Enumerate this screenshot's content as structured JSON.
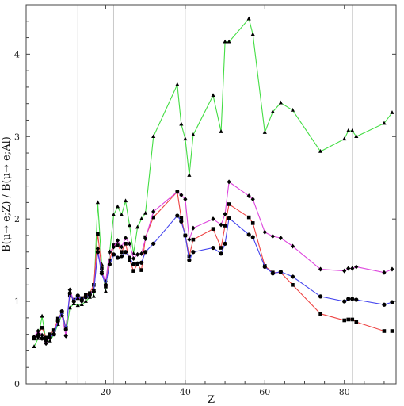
{
  "chart_data": {
    "type": "line",
    "title": "",
    "xlabel": "Z",
    "ylabel": "B(μ→ e;Z) / B(μ→ e;Al)",
    "xlim": [
      0,
      93
    ],
    "ylim": [
      0,
      4.6
    ],
    "x_ticks": [
      20,
      40,
      60,
      80
    ],
    "y_ticks": [
      0,
      1,
      2,
      3,
      4
    ],
    "vertical_reference_lines": [
      13,
      22,
      40,
      82
    ],
    "grid": false,
    "legend": "none",
    "series": [
      {
        "color": "#44dd44",
        "marker": "triangle",
        "x": [
          2,
          3,
          4,
          5,
          6,
          7,
          8,
          9,
          10,
          11,
          12,
          13,
          14,
          15,
          16,
          17,
          18,
          19,
          20,
          21,
          22,
          23,
          24,
          25,
          26,
          27,
          28,
          29,
          30,
          32,
          38,
          39,
          40,
          41,
          42,
          47,
          49,
          50,
          51,
          56,
          57,
          60,
          62,
          64,
          67,
          74,
          80,
          81,
          82,
          83,
          90,
          92
        ],
        "y": [
          0.45,
          0.55,
          0.82,
          0.52,
          0.52,
          0.6,
          0.72,
          0.84,
          0.6,
          0.92,
          0.97,
          0.95,
          0.96,
          1.0,
          1.05,
          1.06,
          2.2,
          1.45,
          1.12,
          1.6,
          2.05,
          2.15,
          2.05,
          2.22,
          1.92,
          1.58,
          1.9,
          2.0,
          2.07,
          3.0,
          3.63,
          3.15,
          2.97,
          2.53,
          3.02,
          3.5,
          3.06,
          4.15,
          4.15,
          4.43,
          4.24,
          3.05,
          3.3,
          3.41,
          3.32,
          2.82,
          2.97,
          3.07,
          3.07,
          3.0,
          3.16,
          3.29
        ]
      },
      {
        "color": "#ee4444",
        "marker": "square",
        "x": [
          2,
          3,
          4,
          5,
          6,
          7,
          8,
          9,
          10,
          11,
          12,
          13,
          14,
          15,
          16,
          17,
          18,
          19,
          20,
          21,
          22,
          23,
          24,
          25,
          26,
          27,
          28,
          29,
          30,
          32,
          38,
          39,
          40,
          41,
          42,
          47,
          49,
          50,
          51,
          56,
          57,
          60,
          62,
          64,
          67,
          74,
          80,
          81,
          82,
          83,
          90,
          92
        ],
        "y": [
          0.55,
          0.6,
          0.68,
          0.56,
          0.6,
          0.65,
          0.79,
          0.87,
          0.68,
          1.07,
          1.02,
          1.04,
          1.04,
          1.08,
          1.1,
          1.2,
          1.82,
          1.4,
          1.18,
          1.5,
          1.68,
          1.68,
          1.6,
          1.7,
          1.5,
          1.37,
          1.45,
          1.38,
          1.78,
          2.02,
          2.33,
          2.01,
          1.8,
          1.55,
          1.75,
          1.88,
          1.65,
          1.92,
          2.18,
          2.02,
          1.95,
          1.43,
          1.35,
          1.35,
          1.2,
          0.85,
          0.77,
          0.78,
          0.78,
          0.75,
          0.64,
          0.64
        ]
      },
      {
        "color": "#dd44dd",
        "marker": "diamond",
        "x": [
          2,
          3,
          4,
          5,
          6,
          7,
          8,
          9,
          10,
          11,
          12,
          13,
          14,
          15,
          16,
          17,
          18,
          19,
          20,
          21,
          22,
          23,
          24,
          25,
          26,
          27,
          28,
          29,
          30,
          32,
          38,
          39,
          40,
          41,
          42,
          47,
          49,
          50,
          51,
          56,
          57,
          60,
          62,
          64,
          67,
          74,
          80,
          81,
          82,
          83,
          90,
          92
        ],
        "y": [
          0.57,
          0.64,
          0.59,
          0.49,
          0.57,
          0.61,
          0.78,
          0.83,
          0.58,
          1.14,
          1.0,
          1.07,
          1.0,
          1.07,
          1.08,
          1.14,
          1.64,
          1.36,
          1.24,
          1.6,
          1.66,
          1.74,
          1.66,
          1.77,
          1.7,
          1.52,
          1.57,
          1.58,
          1.76,
          2.09,
          2.33,
          2.29,
          2.24,
          1.75,
          1.89,
          2.0,
          1.93,
          2.06,
          2.45,
          2.28,
          2.24,
          1.84,
          1.79,
          1.77,
          1.67,
          1.39,
          1.37,
          1.4,
          1.4,
          1.42,
          1.35,
          1.39
        ]
      },
      {
        "color": "#4444ee",
        "marker": "circle",
        "x": [
          2,
          3,
          4,
          5,
          6,
          7,
          8,
          9,
          10,
          11,
          12,
          13,
          14,
          15,
          16,
          17,
          18,
          19,
          20,
          21,
          22,
          23,
          24,
          25,
          26,
          27,
          28,
          29,
          30,
          32,
          38,
          39,
          40,
          41,
          42,
          47,
          49,
          50,
          51,
          56,
          57,
          60,
          62,
          64,
          67,
          74,
          80,
          81,
          82,
          83,
          90,
          92
        ],
        "y": [
          0.56,
          0.58,
          0.55,
          0.53,
          0.56,
          0.6,
          0.76,
          0.88,
          0.66,
          1.1,
          1.0,
          1.07,
          1.02,
          1.05,
          1.08,
          1.12,
          1.6,
          1.34,
          1.2,
          1.45,
          1.57,
          1.53,
          1.55,
          1.6,
          1.53,
          1.45,
          1.46,
          1.47,
          1.6,
          1.7,
          2.04,
          1.97,
          1.8,
          1.5,
          1.6,
          1.65,
          1.58,
          1.7,
          2.01,
          1.81,
          1.78,
          1.42,
          1.34,
          1.36,
          1.3,
          1.06,
          1.0,
          1.03,
          1.03,
          1.02,
          0.96,
          0.99
        ]
      }
    ]
  }
}
